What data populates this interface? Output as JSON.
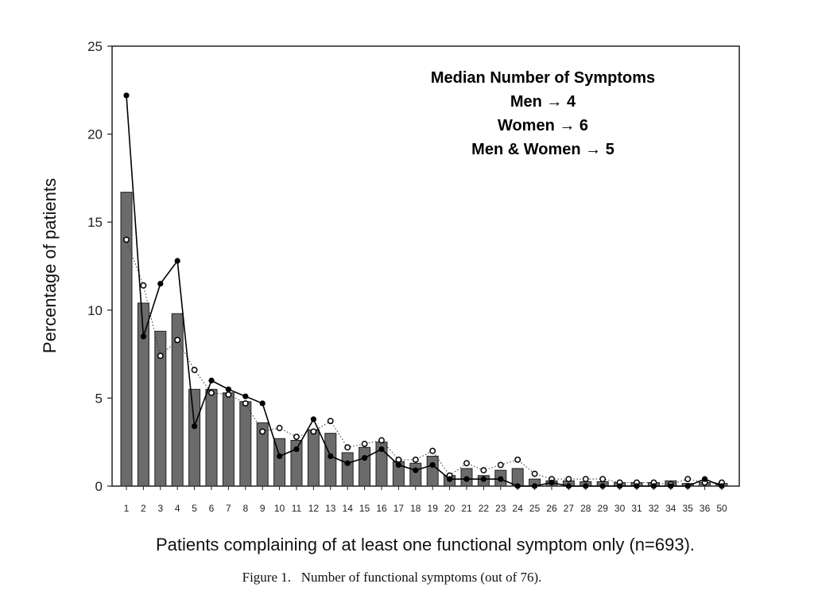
{
  "chart_data": {
    "type": "bar",
    "title": "",
    "xlabel": "Patients complaining of at least one functional symptom only (n=693).",
    "ylabel": "Percentage of patients",
    "ylim": [
      0,
      25
    ],
    "yticks": [
      "0",
      "5",
      "10",
      "15",
      "20",
      "25"
    ],
    "grid": false,
    "categories": [
      "1",
      "2",
      "3",
      "4",
      "5",
      "6",
      "7",
      "8",
      "9",
      "10",
      "11",
      "12",
      "13",
      "14",
      "15",
      "16",
      "17",
      "18",
      "19",
      "20",
      "21",
      "22",
      "23",
      "24",
      "25",
      "26",
      "27",
      "28",
      "29",
      "30",
      "31",
      "32",
      "34",
      "35",
      "36",
      "50"
    ],
    "series": [
      {
        "kind": "bar",
        "color": "#6b6b6b",
        "values": [
          16.7,
          10.4,
          8.8,
          9.8,
          5.5,
          5.5,
          5.3,
          4.8,
          3.6,
          2.7,
          2.6,
          3.2,
          3.0,
          1.9,
          2.2,
          2.5,
          1.4,
          1.3,
          1.7,
          0.6,
          1.0,
          0.6,
          0.9,
          1.0,
          0.4,
          0.3,
          0.3,
          0.25,
          0.25,
          0.2,
          0.2,
          0.2,
          0.3,
          0.15,
          0.2,
          0.15
        ]
      },
      {
        "kind": "line",
        "marker": "filled-circle",
        "color": "#000000",
        "values": [
          22.2,
          8.5,
          11.5,
          12.8,
          3.4,
          6.0,
          5.5,
          5.1,
          4.7,
          1.7,
          2.1,
          3.8,
          1.7,
          1.3,
          1.6,
          2.1,
          1.2,
          0.9,
          1.2,
          0.4,
          0.4,
          0.4,
          0.4,
          0.0,
          0.0,
          0.2,
          0.0,
          0.0,
          0.0,
          0.0,
          0.0,
          0.0,
          0.0,
          0.0,
          0.4,
          0.0
        ]
      },
      {
        "kind": "line",
        "marker": "open-circle",
        "dash": "dotted",
        "color": "#000000",
        "values": [
          14.0,
          11.4,
          7.4,
          8.3,
          6.6,
          5.3,
          5.2,
          4.7,
          3.1,
          3.3,
          2.8,
          3.1,
          3.7,
          2.2,
          2.4,
          2.6,
          1.5,
          1.5,
          2.0,
          0.6,
          1.3,
          0.9,
          1.2,
          1.5,
          0.7,
          0.4,
          0.4,
          0.4,
          0.4,
          0.2,
          0.2,
          0.2,
          0.1,
          0.4,
          0.2,
          0.2
        ]
      }
    ],
    "annotation": [
      "Median Number of Symptoms",
      "Men → 4",
      "Women → 6",
      "Men & Women → 5"
    ],
    "caption": "Figure 1.   Number of functional symptoms (out of 76)."
  }
}
